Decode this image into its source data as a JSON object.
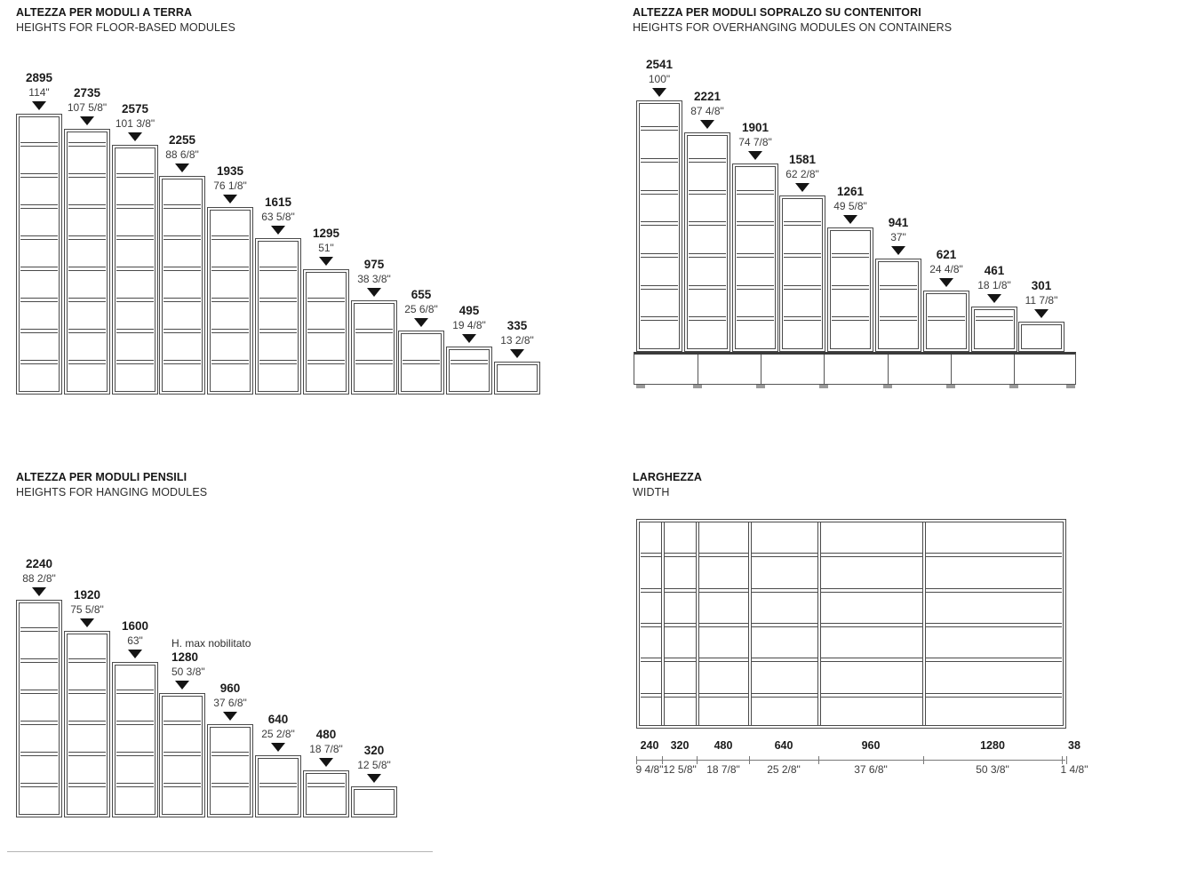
{
  "panels": {
    "floor": {
      "title_it": "ALTEZZA PER MODULI A TERRA",
      "title_en": "HEIGHTS FOR FLOOR-BASED MODULES",
      "modules": [
        {
          "mm": "2895",
          "inch": "114\"",
          "value": 2895
        },
        {
          "mm": "2735",
          "inch": "107 5/8\"",
          "value": 2735
        },
        {
          "mm": "2575",
          "inch": "101 3/8\"",
          "value": 2575
        },
        {
          "mm": "2255",
          "inch": "88 6/8\"",
          "value": 2255
        },
        {
          "mm": "1935",
          "inch": "76 1/8\"",
          "value": 1935
        },
        {
          "mm": "1615",
          "inch": "63 5/8\"",
          "value": 1615
        },
        {
          "mm": "1295",
          "inch": "51\"",
          "value": 1295
        },
        {
          "mm": "975",
          "inch": "38 3/8\"",
          "value": 975
        },
        {
          "mm": "655",
          "inch": "25 6/8\"",
          "value": 655
        },
        {
          "mm": "495",
          "inch": "19 4/8\"",
          "value": 495
        },
        {
          "mm": "335",
          "inch": "13 2/8\"",
          "value": 335
        }
      ]
    },
    "overhang": {
      "title_it": "ALTEZZA PER MODULI SOPRALZO SU CONTENITORI",
      "title_en": "HEIGHTS FOR OVERHANGING MODULES ON CONTAINERS",
      "modules": [
        {
          "mm": "2541",
          "inch": "100\"",
          "value": 2541
        },
        {
          "mm": "2221",
          "inch": "87 4/8\"",
          "value": 2221
        },
        {
          "mm": "1901",
          "inch": "74 7/8\"",
          "value": 1901
        },
        {
          "mm": "1581",
          "inch": "62 2/8\"",
          "value": 1581
        },
        {
          "mm": "1261",
          "inch": "49 5/8\"",
          "value": 1261
        },
        {
          "mm": "941",
          "inch": "37\"",
          "value": 941
        },
        {
          "mm": "621",
          "inch": "24 4/8\"",
          "value": 621
        },
        {
          "mm": "461",
          "inch": "18 1/8\"",
          "value": 461
        },
        {
          "mm": "301",
          "inch": "11 7/8\"",
          "value": 301
        }
      ]
    },
    "hanging": {
      "title_it": "ALTEZZA PER MODULI PENSILI",
      "title_en": "HEIGHTS FOR HANGING MODULES",
      "modules": [
        {
          "mm": "2240",
          "inch": "88 2/8\"",
          "value": 2240
        },
        {
          "mm": "1920",
          "inch": "75 5/8\"",
          "value": 1920
        },
        {
          "mm": "1600",
          "inch": "63\"",
          "value": 1600
        },
        {
          "mm": "1280",
          "inch": "50 3/8\"",
          "value": 1280,
          "note": "H. max nobilitato"
        },
        {
          "mm": "960",
          "inch": "37 6/8\"",
          "value": 960
        },
        {
          "mm": "640",
          "inch": "25 2/8\"",
          "value": 640
        },
        {
          "mm": "480",
          "inch": "18 7/8\"",
          "value": 480
        },
        {
          "mm": "320",
          "inch": "12 5/8\"",
          "value": 320
        }
      ]
    },
    "width": {
      "title_it": "LARGHEZZA",
      "title_en": "WIDTH",
      "rows": 6,
      "segments": [
        {
          "mm": "240",
          "inch": "9 4/8\"",
          "value": 240
        },
        {
          "mm": "320",
          "inch": "12 5/8\"",
          "value": 320
        },
        {
          "mm": "480",
          "inch": "18 7/8\"",
          "value": 480
        },
        {
          "mm": "640",
          "inch": "25 2/8\"",
          "value": 640
        },
        {
          "mm": "960",
          "inch": "37 6/8\"",
          "value": 960
        },
        {
          "mm": "1280",
          "inch": "50 3/8\"",
          "value": 1280
        },
        {
          "mm": "38",
          "inch": "1 4/8\"",
          "value": 38
        }
      ]
    }
  },
  "colors": {
    "line": "#4a4a4a",
    "marker": "#141414",
    "plinth_top": "#3a3a3a",
    "dimension": "#787878"
  }
}
